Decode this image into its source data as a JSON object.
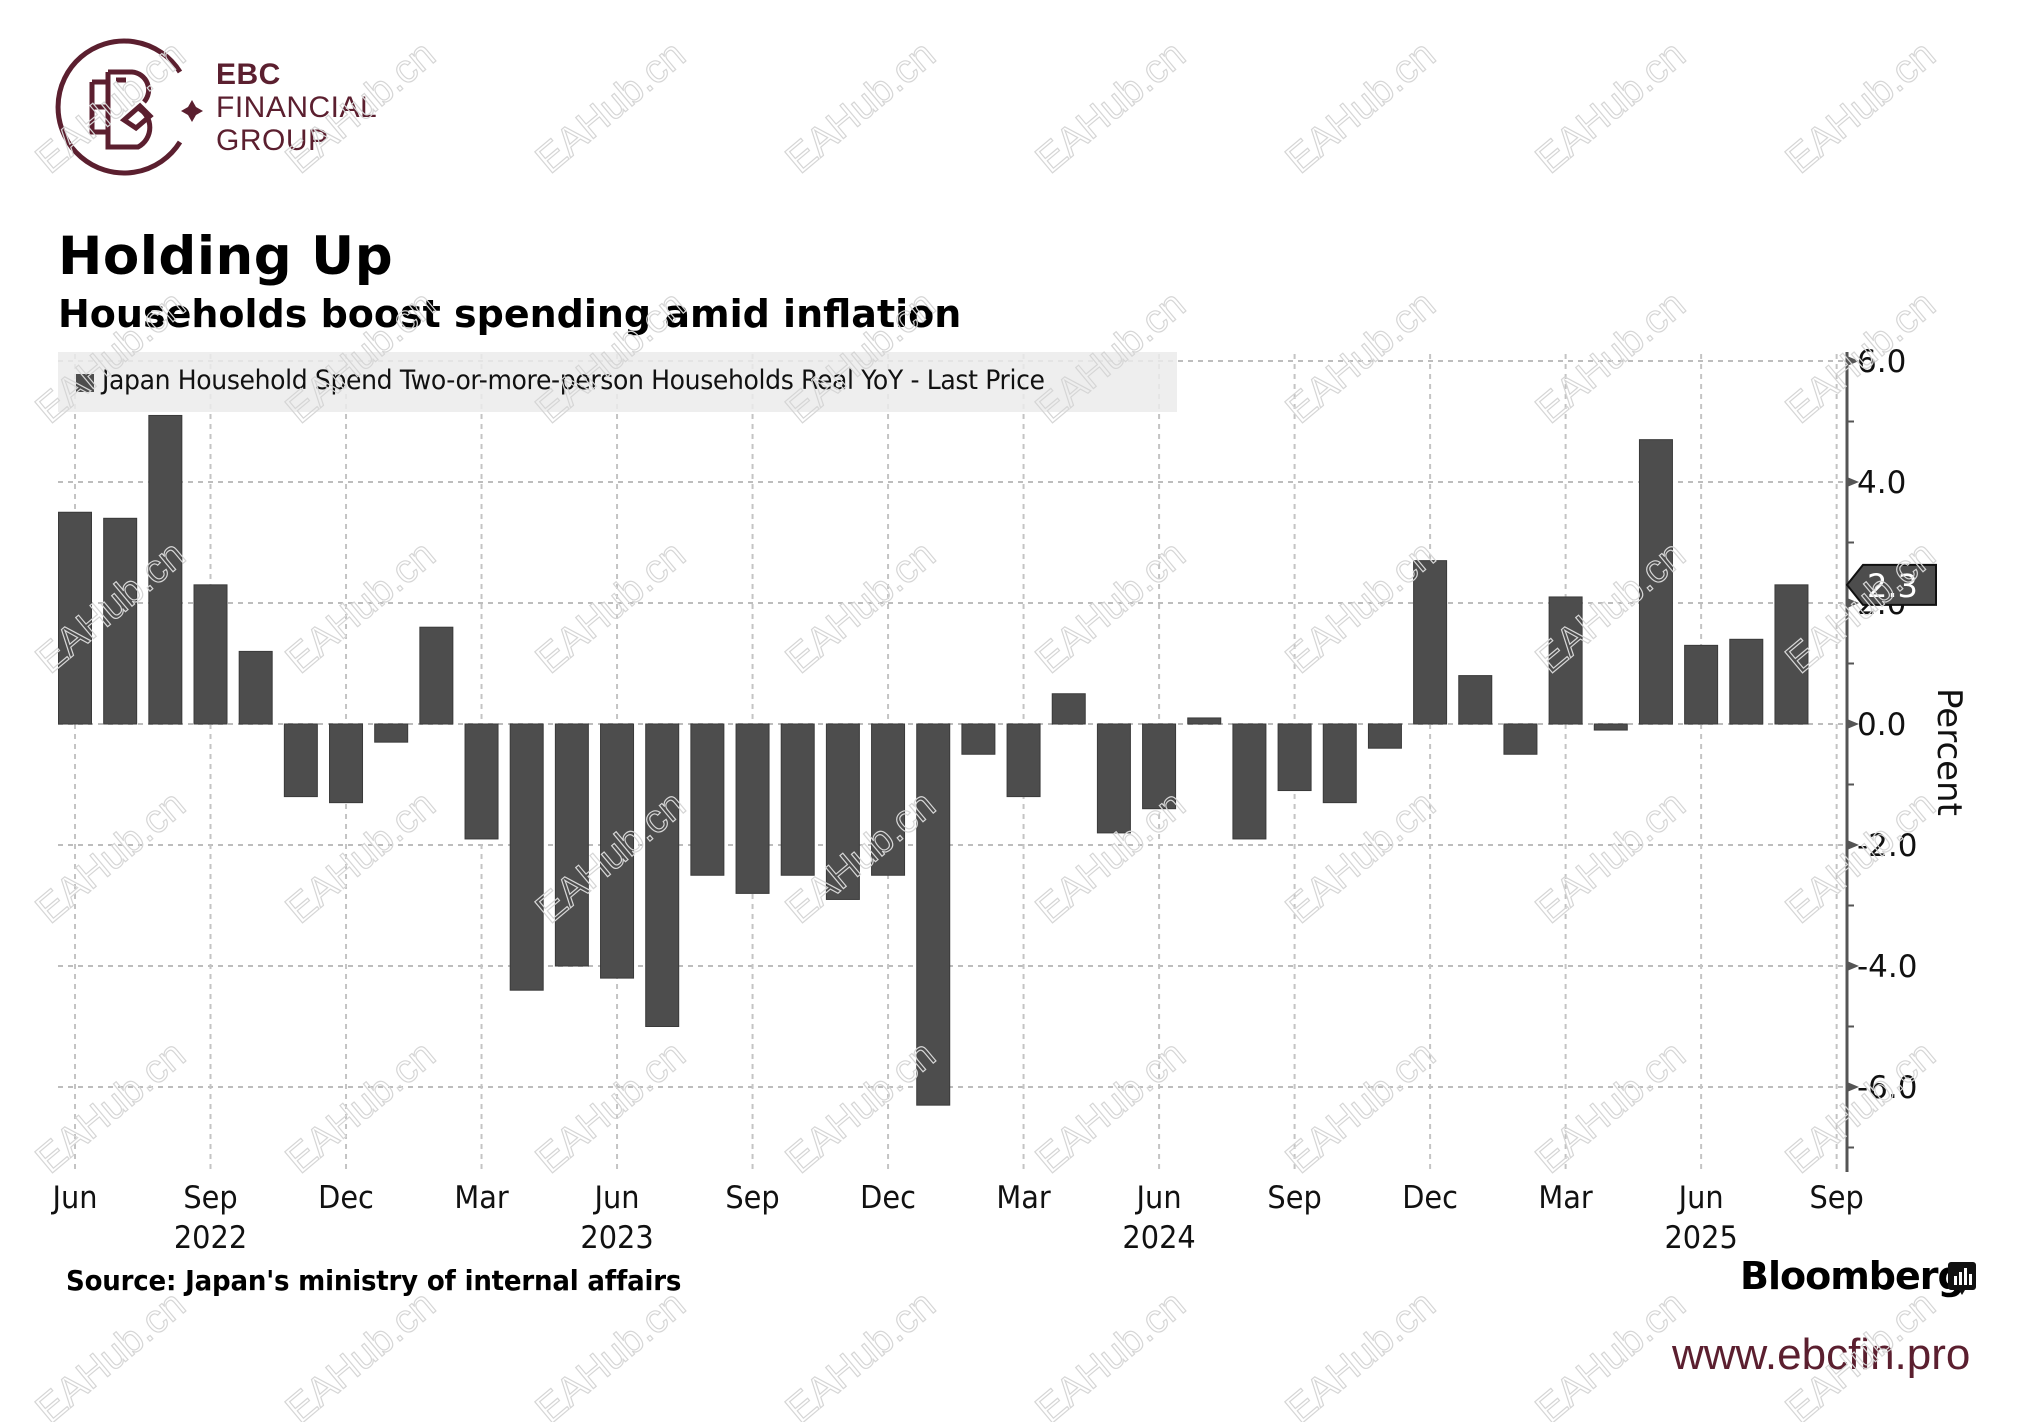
{
  "brand": {
    "name_line1": "EBC",
    "name_line2": "FINANCIAL",
    "name_line3": "GROUP",
    "url": "www.ebcfin.pro",
    "color": "#5b1f2f"
  },
  "watermark": "EAHub.cn",
  "footer": {
    "source": "Source: Japan's ministry of internal affairs",
    "publisher": "Bloomberg"
  },
  "chart_data": {
    "type": "bar",
    "title": "Holding Up",
    "subtitle": "Households boost spending amid inflation",
    "legend": [
      "Japan Household Spend Two-or-more-person Households Real YoY - Last Price"
    ],
    "legend_placement": "top-left",
    "xlabel": "",
    "ylabel": "Percent",
    "y_axis_side": "right",
    "ylim": [
      -7.4,
      6.2
    ],
    "yticks": [
      6.0,
      4.0,
      2.0,
      0.0,
      -2.0,
      -4.0,
      -6.0
    ],
    "ytick_labels": [
      "6.0",
      "4.0",
      "2.0",
      "0.0",
      "-2.0",
      "-4.0",
      "-6.0"
    ],
    "grid": true,
    "bar_color": "#4d4d4d",
    "last_value_label": "2.3",
    "x_ticks": [
      {
        "month": "2022-06",
        "label": "Jun",
        "year_label": ""
      },
      {
        "month": "2022-09",
        "label": "Sep",
        "year_label": "2022"
      },
      {
        "month": "2022-12",
        "label": "Dec",
        "year_label": ""
      },
      {
        "month": "2023-03",
        "label": "Mar",
        "year_label": ""
      },
      {
        "month": "2023-06",
        "label": "Jun",
        "year_label": "2023"
      },
      {
        "month": "2023-09",
        "label": "Sep",
        "year_label": ""
      },
      {
        "month": "2023-12",
        "label": "Dec",
        "year_label": ""
      },
      {
        "month": "2024-03",
        "label": "Mar",
        "year_label": ""
      },
      {
        "month": "2024-06",
        "label": "Jun",
        "year_label": "2024"
      },
      {
        "month": "2024-09",
        "label": "Sep",
        "year_label": ""
      },
      {
        "month": "2024-12",
        "label": "Dec",
        "year_label": ""
      },
      {
        "month": "2025-03",
        "label": "Mar",
        "year_label": ""
      },
      {
        "month": "2025-06",
        "label": "Jun",
        "year_label": "2025"
      },
      {
        "month": "2025-09",
        "label": "Sep",
        "year_label": ""
      }
    ],
    "categories": [
      "2022-06",
      "2022-07",
      "2022-08",
      "2022-09",
      "2022-10",
      "2022-11",
      "2022-12",
      "2023-01",
      "2023-02",
      "2023-03",
      "2023-04",
      "2023-05",
      "2023-06",
      "2023-07",
      "2023-08",
      "2023-09",
      "2023-10",
      "2023-11",
      "2023-12",
      "2024-01",
      "2024-02",
      "2024-03",
      "2024-04",
      "2024-05",
      "2024-06",
      "2024-07",
      "2024-08",
      "2024-09",
      "2024-10",
      "2024-11",
      "2024-12",
      "2025-01",
      "2025-02",
      "2025-03",
      "2025-04",
      "2025-05",
      "2025-06",
      "2025-07",
      "2025-08"
    ],
    "values": [
      3.5,
      3.4,
      5.1,
      2.3,
      1.2,
      -1.2,
      -1.3,
      -0.3,
      1.6,
      -1.9,
      -4.4,
      -4.0,
      -4.2,
      -5.0,
      -2.5,
      -2.8,
      -2.5,
      -2.9,
      -2.5,
      -6.3,
      -0.5,
      -1.2,
      0.5,
      -1.8,
      -1.4,
      0.1,
      -1.9,
      -1.1,
      -1.3,
      -0.4,
      2.7,
      0.8,
      -0.5,
      2.1,
      -0.1,
      4.7,
      1.3,
      1.4,
      2.3
    ]
  }
}
